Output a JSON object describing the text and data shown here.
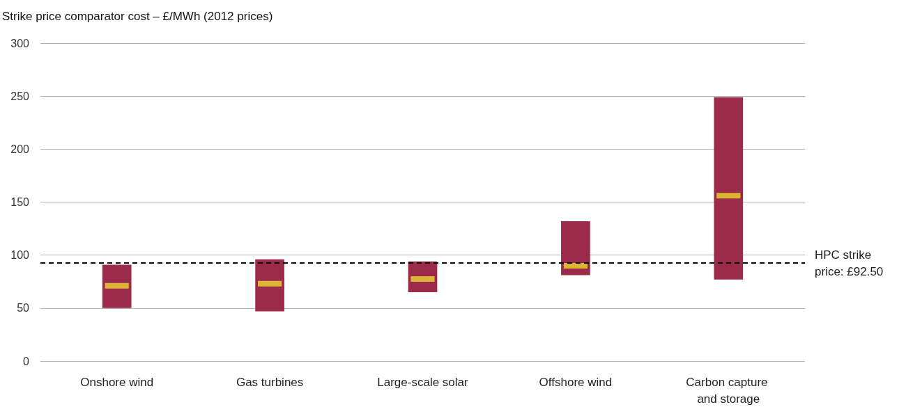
{
  "chart_data": {
    "type": "box",
    "ylabel": "Strike price comparator cost – £/MWh (2012 prices)",
    "categories": [
      "Onshore wind",
      "Gas turbines",
      "Large-scale solar",
      "Offshore wind",
      "Carbon capture and storage"
    ],
    "series": [
      {
        "color": "#9c2a4a",
        "boxes": [
          {
            "low": 50,
            "q1": 50,
            "median": 71,
            "q3": 91,
            "high": 91
          },
          {
            "low": 47,
            "q1": 47,
            "median": 73,
            "q3": 96,
            "high": 96
          },
          {
            "low": 65,
            "q1": 65,
            "median": 77.5,
            "q3": 94,
            "high": 94
          },
          {
            "low": 81,
            "q1": 81,
            "median": 90,
            "q3": 132,
            "high": 132
          },
          {
            "low": 77,
            "q1": 77,
            "median": 156,
            "q3": 249,
            "high": 249
          }
        ]
      }
    ],
    "ylim": [
      0,
      300
    ],
    "yticks": [
      0,
      50,
      100,
      150,
      200,
      250,
      300
    ],
    "grid": "y",
    "ref_lines": [
      {
        "axis": "y",
        "value": 92.5,
        "label": "HPC strike price: £92.50",
        "color": "#000000",
        "line_style": "dashed"
      }
    ]
  }
}
